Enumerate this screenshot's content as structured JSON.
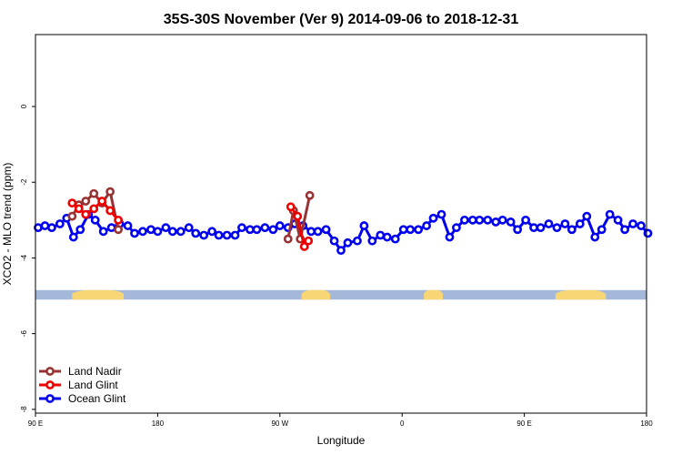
{
  "chart_data": {
    "type": "line",
    "title": "35S-30S November (Ver 9)   2014-09-06 to 2018-12-31",
    "xlabel": "Longitude",
    "ylabel": "XCO2 - MLO trend (ppm)",
    "xlim": [
      90,
      540
    ],
    "ylim": [
      -8.1,
      1.9
    ],
    "x_ticks": [
      {
        "value": 90,
        "label": "90 E"
      },
      {
        "value": 180,
        "label": "180"
      },
      {
        "value": 270,
        "label": "90 W"
      },
      {
        "value": 360,
        "label": "0"
      },
      {
        "value": 450,
        "label": "90 E"
      },
      {
        "value": 540,
        "label": "180"
      }
    ],
    "y_ticks": [
      {
        "value": 0,
        "label": "0"
      },
      {
        "value": -2,
        "label": "-2"
      },
      {
        "value": -4,
        "label": "-4"
      },
      {
        "value": -6,
        "label": "-6"
      },
      {
        "value": -8,
        "label": "-8"
      }
    ],
    "legend_position": "bottom-left",
    "land_strip": {
      "y_range": [
        -5.1,
        -4.85
      ],
      "ocean_color": "#a4b9d9",
      "land_color": "#f8d676",
      "land_segments": [
        [
          117,
          155
        ],
        [
          286,
          307
        ],
        [
          376,
          390
        ],
        [
          473,
          510
        ]
      ]
    },
    "series": [
      {
        "name": "Land Nadir",
        "color": "#993333",
        "x": [
          117,
          122,
          127,
          133,
          139,
          145,
          151,
          276,
          280,
          285,
          292
        ],
        "y": [
          -2.9,
          -2.6,
          -2.5,
          -2.3,
          -2.55,
          -2.25,
          -3.25,
          -3.5,
          -2.75,
          -3.5,
          -2.35
        ]
      },
      {
        "name": "Land Glint",
        "color": "#ee0000",
        "x": [
          117,
          122,
          127,
          133,
          139,
          145,
          151,
          278,
          283,
          288,
          291
        ],
        "y": [
          -2.55,
          -2.7,
          -2.85,
          -2.7,
          -2.5,
          -2.75,
          -3.0,
          -2.65,
          -2.9,
          -3.7,
          -3.55
        ]
      },
      {
        "name": "Ocean Glint",
        "color": "#0000ee",
        "x": [
          92,
          97,
          102,
          108,
          113,
          118,
          123,
          129,
          134,
          140,
          146,
          152,
          158,
          163,
          169,
          175,
          180,
          186,
          191,
          197,
          203,
          208,
          214,
          220,
          225,
          231,
          237,
          242,
          248,
          253,
          259,
          265,
          270,
          276,
          281,
          287,
          293,
          298,
          304,
          310,
          315,
          320,
          327,
          332,
          338,
          344,
          349,
          355,
          361,
          366,
          372,
          378,
          383,
          389,
          395,
          400,
          406,
          412,
          417,
          423,
          429,
          434,
          440,
          445,
          451,
          457,
          462,
          468,
          474,
          480,
          485,
          491,
          496,
          502,
          507,
          513,
          519,
          524,
          530,
          536,
          541
        ],
        "y": [
          -3.2,
          -3.15,
          -3.2,
          -3.1,
          -2.95,
          -3.45,
          -3.25,
          -2.85,
          -3.0,
          -3.3,
          -3.2,
          -3.1,
          -3.15,
          -3.35,
          -3.3,
          -3.25,
          -3.3,
          -3.2,
          -3.3,
          -3.3,
          -3.2,
          -3.35,
          -3.4,
          -3.3,
          -3.4,
          -3.4,
          -3.4,
          -3.2,
          -3.25,
          -3.25,
          -3.2,
          -3.25,
          -3.15,
          -3.2,
          -3.1,
          -3.15,
          -3.3,
          -3.3,
          -3.25,
          -3.55,
          -3.8,
          -3.6,
          -3.55,
          -3.15,
          -3.55,
          -3.4,
          -3.45,
          -3.5,
          -3.25,
          -3.25,
          -3.25,
          -3.15,
          -2.95,
          -2.85,
          -3.45,
          -3.2,
          -3.0,
          -3.0,
          -3.0,
          -3.0,
          -3.05,
          -3.0,
          -3.05,
          -3.25,
          -3.0,
          -3.2,
          -3.2,
          -3.1,
          -3.2,
          -3.1,
          -3.25,
          -3.1,
          -2.9,
          -3.45,
          -3.25,
          -2.85,
          -3.0,
          -3.25,
          -3.1,
          -3.15,
          -3.35
        ]
      }
    ]
  }
}
